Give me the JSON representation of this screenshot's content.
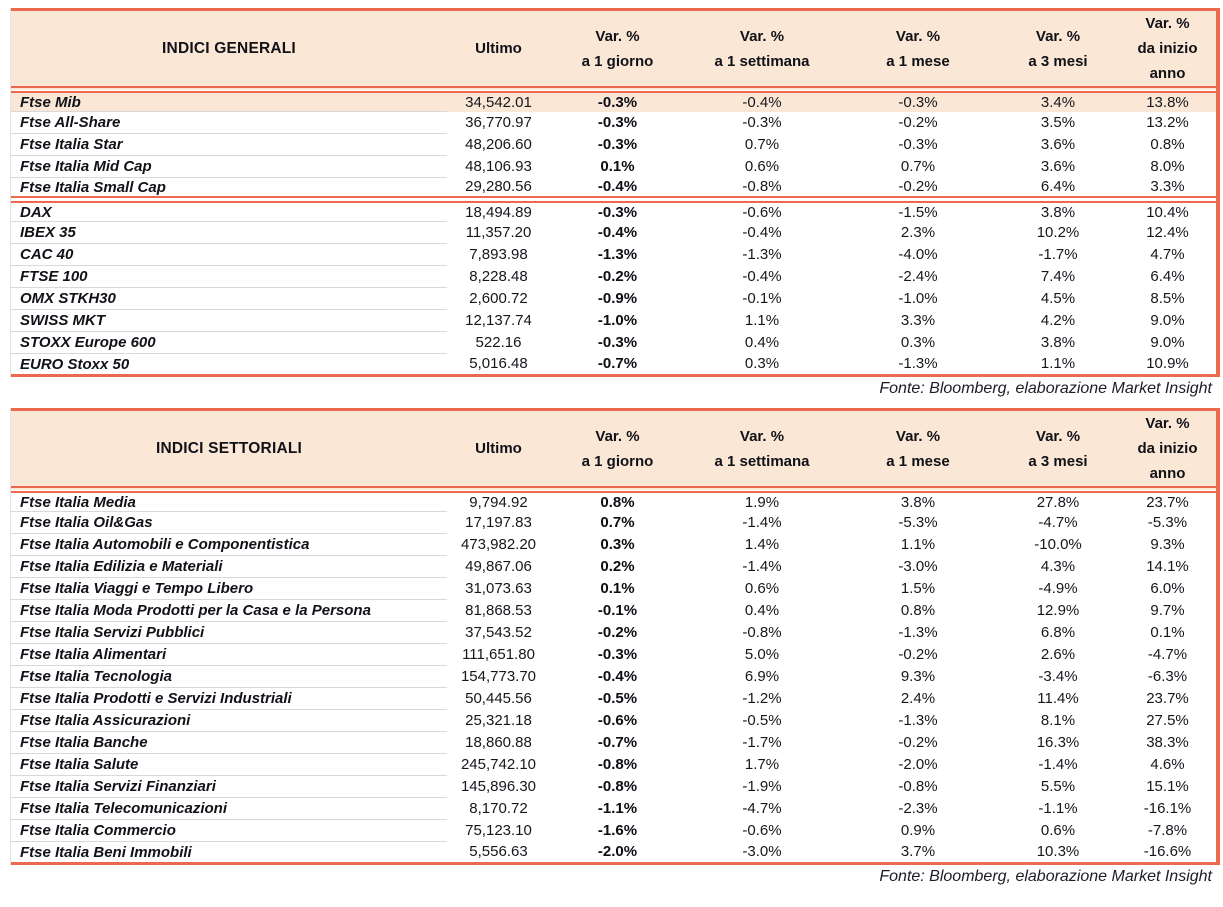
{
  "accent_colors": {
    "rule_line": "#eb6a4f",
    "header_background": "#fbe7d6",
    "highlight_row_background": "#fbe7d6",
    "row_separator": "#d9d9d9",
    "text": "#15171c"
  },
  "tables": [
    {
      "title": "INDICI GENERALI",
      "ultimo_label": "Ultimo",
      "var_columns": [
        {
          "top": "Var. %",
          "bottom": "a 1 giorno"
        },
        {
          "top": "Var. %",
          "bottom": "a 1 settimana"
        },
        {
          "top": "Var. %",
          "bottom": "a 1 mese"
        },
        {
          "top": "Var. %",
          "bottom": "a 3 mesi"
        },
        {
          "top": "Var. %",
          "bottom": "da inizio anno"
        }
      ],
      "source": "Fonte: Bloomberg, elaborazione Market Insight",
      "sections": [
        {
          "rows": [
            {
              "name": "Ftse Mib",
              "ultimo": "34,542.01",
              "d1": "-0.3%",
              "w1": "-0.4%",
              "m1": "-0.3%",
              "m3": "3.4%",
              "ytd": "13.8%",
              "highlight": true
            },
            {
              "name": "Ftse All-Share",
              "ultimo": "36,770.97",
              "d1": "-0.3%",
              "w1": "-0.3%",
              "m1": "-0.2%",
              "m3": "3.5%",
              "ytd": "13.2%"
            },
            {
              "name": "Ftse Italia Star",
              "ultimo": "48,206.60",
              "d1": "-0.3%",
              "w1": "0.7%",
              "m1": "-0.3%",
              "m3": "3.6%",
              "ytd": "0.8%"
            },
            {
              "name": "Ftse Italia Mid Cap",
              "ultimo": "48,106.93",
              "d1": "0.1%",
              "w1": "0.6%",
              "m1": "0.7%",
              "m3": "3.6%",
              "ytd": "8.0%"
            },
            {
              "name": "Ftse Italia Small Cap",
              "ultimo": "29,280.56",
              "d1": "-0.4%",
              "w1": "-0.8%",
              "m1": "-0.2%",
              "m3": "6.4%",
              "ytd": "3.3%"
            }
          ]
        },
        {
          "rows": [
            {
              "name": "DAX",
              "ultimo": "18,494.89",
              "d1": "-0.3%",
              "w1": "-0.6%",
              "m1": "-1.5%",
              "m3": "3.8%",
              "ytd": "10.4%"
            },
            {
              "name": "IBEX 35",
              "ultimo": "11,357.20",
              "d1": "-0.4%",
              "w1": "-0.4%",
              "m1": "2.3%",
              "m3": "10.2%",
              "ytd": "12.4%"
            },
            {
              "name": "CAC 40",
              "ultimo": "7,893.98",
              "d1": "-1.3%",
              "w1": "-1.3%",
              "m1": "-4.0%",
              "m3": "-1.7%",
              "ytd": "4.7%"
            },
            {
              "name": "FTSE 100",
              "ultimo": "8,228.48",
              "d1": "-0.2%",
              "w1": "-0.4%",
              "m1": "-2.4%",
              "m3": "7.4%",
              "ytd": "6.4%"
            },
            {
              "name": "OMX STKH30",
              "ultimo": "2,600.72",
              "d1": "-0.9%",
              "w1": "-0.1%",
              "m1": "-1.0%",
              "m3": "4.5%",
              "ytd": "8.5%"
            },
            {
              "name": "SWISS MKT",
              "ultimo": "12,137.74",
              "d1": "-1.0%",
              "w1": "1.1%",
              "m1": "3.3%",
              "m3": "4.2%",
              "ytd": "9.0%"
            },
            {
              "name": "STOXX Europe 600",
              "ultimo": "522.16",
              "d1": "-0.3%",
              "w1": "0.4%",
              "m1": "0.3%",
              "m3": "3.8%",
              "ytd": "9.0%"
            },
            {
              "name": "EURO Stoxx 50",
              "ultimo": "5,016.48",
              "d1": "-0.7%",
              "w1": "0.3%",
              "m1": "-1.3%",
              "m3": "1.1%",
              "ytd": "10.9%"
            }
          ]
        }
      ]
    },
    {
      "title": "INDICI SETTORIALI",
      "ultimo_label": "Ultimo",
      "var_columns": [
        {
          "top": "Var. %",
          "bottom": "a 1 giorno"
        },
        {
          "top": "Var. %",
          "bottom": "a 1 settimana"
        },
        {
          "top": "Var. %",
          "bottom": "a 1 mese"
        },
        {
          "top": "Var. %",
          "bottom": "a 3 mesi"
        },
        {
          "top": "Var. %",
          "bottom": "da inizio anno"
        }
      ],
      "source": "Fonte: Bloomberg, elaborazione Market Insight",
      "sections": [
        {
          "rows": [
            {
              "name": "Ftse Italia Media",
              "ultimo": "9,794.92",
              "d1": "0.8%",
              "w1": "1.9%",
              "m1": "3.8%",
              "m3": "27.8%",
              "ytd": "23.7%"
            },
            {
              "name": "Ftse Italia Oil&Gas",
              "ultimo": "17,197.83",
              "d1": "0.7%",
              "w1": "-1.4%",
              "m1": "-5.3%",
              "m3": "-4.7%",
              "ytd": "-5.3%"
            },
            {
              "name": "Ftse Italia Automobili e Componentistica",
              "ultimo": "473,982.20",
              "d1": "0.3%",
              "w1": "1.4%",
              "m1": "1.1%",
              "m3": "-10.0%",
              "ytd": "9.3%"
            },
            {
              "name": "Ftse Italia Edilizia e Materiali",
              "ultimo": "49,867.06",
              "d1": "0.2%",
              "w1": "-1.4%",
              "m1": "-3.0%",
              "m3": "4.3%",
              "ytd": "14.1%"
            },
            {
              "name": "Ftse Italia Viaggi e Tempo Libero",
              "ultimo": "31,073.63",
              "d1": "0.1%",
              "w1": "0.6%",
              "m1": "1.5%",
              "m3": "-4.9%",
              "ytd": "6.0%"
            },
            {
              "name": "Ftse Italia Moda Prodotti per la Casa e la Persona",
              "ultimo": "81,868.53",
              "d1": "-0.1%",
              "w1": "0.4%",
              "m1": "0.8%",
              "m3": "12.9%",
              "ytd": "9.7%"
            },
            {
              "name": "Ftse Italia Servizi Pubblici",
              "ultimo": "37,543.52",
              "d1": "-0.2%",
              "w1": "-0.8%",
              "m1": "-1.3%",
              "m3": "6.8%",
              "ytd": "0.1%"
            },
            {
              "name": "Ftse Italia Alimentari",
              "ultimo": "111,651.80",
              "d1": "-0.3%",
              "w1": "5.0%",
              "m1": "-0.2%",
              "m3": "2.6%",
              "ytd": "-4.7%"
            },
            {
              "name": "Ftse Italia Tecnologia",
              "ultimo": "154,773.70",
              "d1": "-0.4%",
              "w1": "6.9%",
              "m1": "9.3%",
              "m3": "-3.4%",
              "ytd": "-6.3%"
            },
            {
              "name": "Ftse Italia Prodotti e Servizi Industriali",
              "ultimo": "50,445.56",
              "d1": "-0.5%",
              "w1": "-1.2%",
              "m1": "2.4%",
              "m3": "11.4%",
              "ytd": "23.7%"
            },
            {
              "name": "Ftse Italia Assicurazioni",
              "ultimo": "25,321.18",
              "d1": "-0.6%",
              "w1": "-0.5%",
              "m1": "-1.3%",
              "m3": "8.1%",
              "ytd": "27.5%"
            },
            {
              "name": "Ftse Italia Banche",
              "ultimo": "18,860.88",
              "d1": "-0.7%",
              "w1": "-1.7%",
              "m1": "-0.2%",
              "m3": "16.3%",
              "ytd": "38.3%"
            },
            {
              "name": "Ftse Italia Salute",
              "ultimo": "245,742.10",
              "d1": "-0.8%",
              "w1": "1.7%",
              "m1": "-2.0%",
              "m3": "-1.4%",
              "ytd": "4.6%"
            },
            {
              "name": "Ftse Italia Servizi Finanziari",
              "ultimo": "145,896.30",
              "d1": "-0.8%",
              "w1": "-1.9%",
              "m1": "-0.8%",
              "m3": "5.5%",
              "ytd": "15.1%"
            },
            {
              "name": "Ftse Italia Telecomunicazioni",
              "ultimo": "8,170.72",
              "d1": "-1.1%",
              "w1": "-4.7%",
              "m1": "-2.3%",
              "m3": "-1.1%",
              "ytd": "-16.1%"
            },
            {
              "name": "Ftse Italia Commercio",
              "ultimo": "75,123.10",
              "d1": "-1.6%",
              "w1": "-0.6%",
              "m1": "0.9%",
              "m3": "0.6%",
              "ytd": "-7.8%"
            },
            {
              "name": "Ftse Italia Beni Immobili",
              "ultimo": "5,556.63",
              "d1": "-2.0%",
              "w1": "-3.0%",
              "m1": "3.7%",
              "m3": "10.3%",
              "ytd": "-16.6%"
            }
          ]
        }
      ]
    }
  ]
}
